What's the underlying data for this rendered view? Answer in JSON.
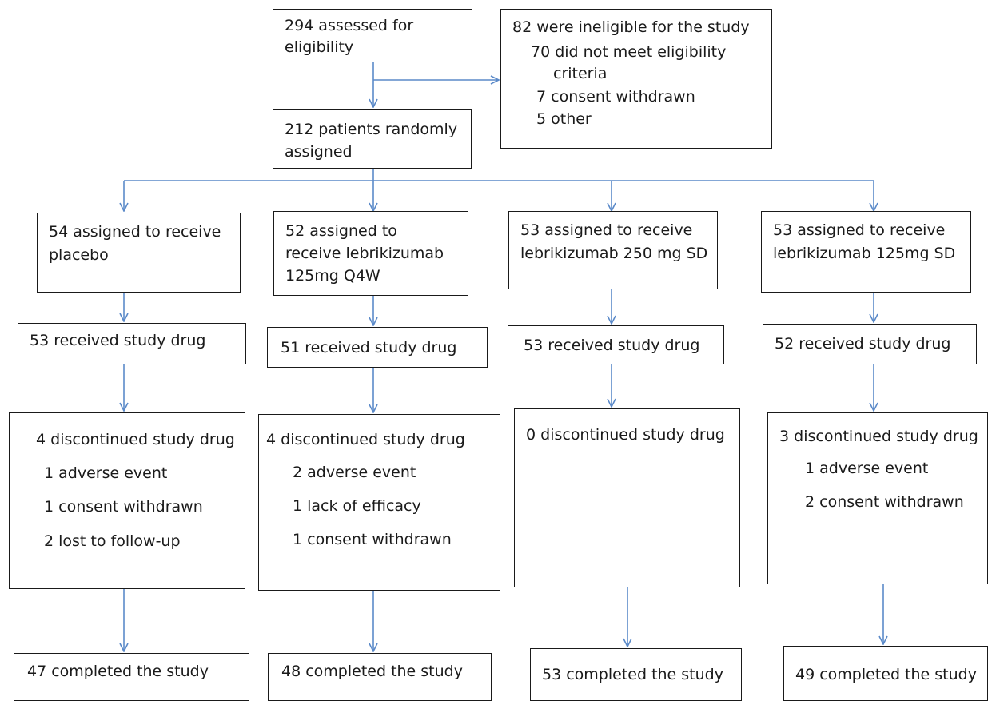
{
  "flowchart": {
    "screening": {
      "line1": "294 assessed for",
      "line2": "eligibility"
    },
    "ineligible": {
      "header": "82 were ineligible for the study",
      "reason1_line1": "70 did not meet eligibility",
      "reason1_line2": "criteria",
      "reason2": "7 consent withdrawn",
      "reason3": "5 other"
    },
    "randomized": {
      "line1": "212 patients randomly",
      "line2": "assigned"
    },
    "arms": [
      {
        "assigned_line1": "54 assigned to receive",
        "assigned_line2": "placebo",
        "received": "53 received study drug",
        "discontinued": "4 discontinued study drug",
        "reasons": [
          "1 adverse event",
          "1 consent withdrawn",
          "2 lost to follow-up"
        ],
        "completed": "47 completed the study"
      },
      {
        "assigned_line1": "52 assigned to",
        "assigned_line2": "receive lebrikizumab",
        "assigned_line3": "125mg Q4W",
        "received": "51 received study drug",
        "discontinued": "4 discontinued study drug",
        "reasons": [
          "2 adverse event",
          "1 lack of efficacy",
          "1 consent withdrawn"
        ],
        "completed": "48 completed the study"
      },
      {
        "assigned_line1": "53 assigned to receive",
        "assigned_line2": "lebrikizumab 250 mg SD",
        "received": "53 received study drug",
        "discontinued": "0 discontinued study drug",
        "completed": "53 completed the study"
      },
      {
        "assigned_line1": "53 assigned to receive",
        "assigned_line2": "lebrikizumab 125mg SD",
        "received": "52 received study drug",
        "discontinued": "3 discontinued study drug",
        "reasons": [
          "1 adverse event",
          "2 consent withdrawn"
        ],
        "completed": "49 completed the study"
      }
    ]
  },
  "colors": {
    "arrow": "#5b8ac9",
    "border": "#1a1a1a",
    "text": "#1a1a1a"
  }
}
